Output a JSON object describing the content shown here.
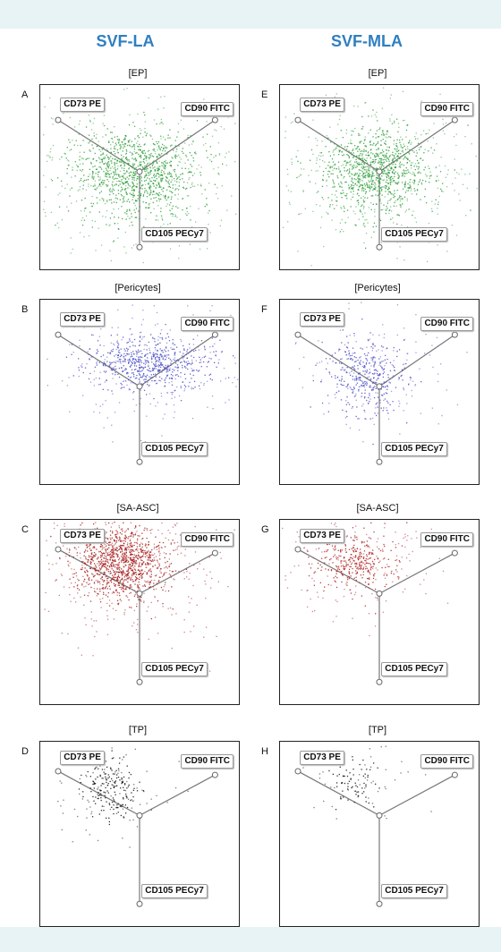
{
  "columns": [
    {
      "header": "SVF-LA"
    },
    {
      "header": "SVF-MLA"
    }
  ],
  "chart_data": [
    {
      "type": "scatter",
      "letter": "A",
      "title": "[EP]",
      "column": "SVF-LA",
      "axes": [
        "CD73 PE",
        "CD90 FITC",
        "CD105 PECy7"
      ],
      "color": "#2e9e3a",
      "points_hint": "dense central cloud"
    },
    {
      "type": "scatter",
      "letter": "E",
      "title": "[EP]",
      "column": "SVF-MLA",
      "axes": [
        "CD73 PE",
        "CD90 FITC",
        "CD105 PECy7"
      ],
      "color": "#2e9e3a",
      "points_hint": "dense central cloud"
    },
    {
      "type": "scatter",
      "letter": "B",
      "title": "[Pericytes]",
      "column": "SVF-LA",
      "axes": [
        "CD73 PE",
        "CD90 FITC",
        "CD105 PECy7"
      ],
      "color": "#4a4ec4",
      "points_hint": "center and toward CD90"
    },
    {
      "type": "scatter",
      "letter": "F",
      "title": "[Pericytes]",
      "column": "SVF-MLA",
      "axes": [
        "CD73 PE",
        "CD90 FITC",
        "CD105 PECy7"
      ],
      "color": "#4a4ec4",
      "points_hint": "central cloud"
    },
    {
      "type": "scatter",
      "letter": "C",
      "title": "[SA-ASC]",
      "column": "SVF-LA",
      "axes": [
        "CD73 PE",
        "CD90 FITC",
        "CD105 PECy7"
      ],
      "color": "#a51c1c",
      "points_hint": "dense toward CD73"
    },
    {
      "type": "scatter",
      "letter": "G",
      "title": "[SA-ASC]",
      "column": "SVF-MLA",
      "axes": [
        "CD73 PE",
        "CD90 FITC",
        "CD105 PECy7"
      ],
      "color": "#b22222",
      "points_hint": "toward CD73"
    },
    {
      "type": "scatter",
      "letter": "D",
      "title": "[TP]",
      "column": "SVF-LA",
      "axes": [
        "CD73 PE",
        "CD90 FITC",
        "CD105 PECy7"
      ],
      "color": "#111111",
      "points_hint": "sparse toward CD73"
    },
    {
      "type": "scatter",
      "letter": "H",
      "title": "[TP]",
      "column": "SVF-MLA",
      "axes": [
        "CD73 PE",
        "CD90 FITC",
        "CD105 PECy7"
      ],
      "color": "#111111",
      "points_hint": "sparse toward CD73"
    }
  ]
}
